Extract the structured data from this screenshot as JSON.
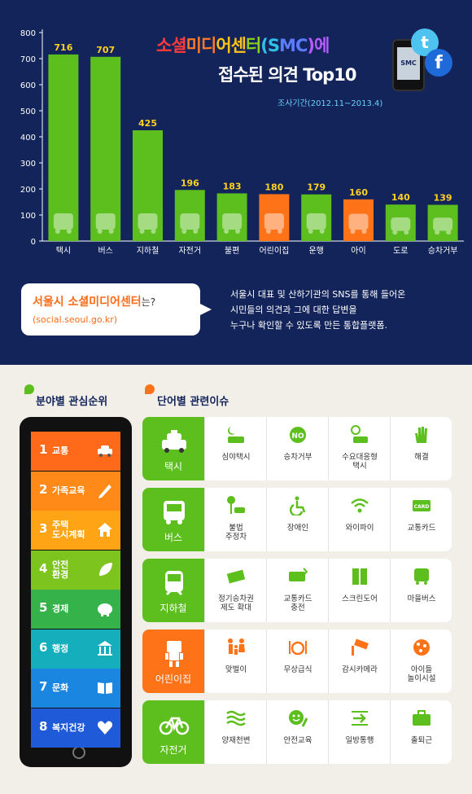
{
  "chart_data": {
    "type": "bar",
    "title": "소셜미디어센터(SMC)에 접수된 의견 Top10",
    "title_line1": "소셜미디어센터(SMC)에",
    "title_line2": "접수된 의견 Top10",
    "subtitle": "조사기간(2012.11~2013.4)",
    "categories": [
      "택시",
      "버스",
      "지하철",
      "자전거",
      "불편",
      "어린이집",
      "운행",
      "아이",
      "도로",
      "승차거부"
    ],
    "values": [
      716,
      707,
      425,
      196,
      183,
      180,
      179,
      160,
      140,
      139
    ],
    "bar_colors": [
      "#5cbf1e",
      "#5cbf1e",
      "#5cbf1e",
      "#5cbf1e",
      "#5cbf1e",
      "#ff7318",
      "#5cbf1e",
      "#ff7318",
      "#5cbf1e",
      "#5cbf1e"
    ],
    "y_ticks": [
      0,
      100,
      200,
      300,
      400,
      500,
      600,
      700,
      800
    ],
    "ylim": [
      0,
      800
    ],
    "grid": false
  },
  "smc_logo": {
    "phone_label": "SMC",
    "twitter_glyph": "t",
    "facebook_glyph": "f"
  },
  "info": {
    "bubble_title": "서울시 소셜미디어센터",
    "bubble_suffix": "는?",
    "url": "(social.seoul.go.kr)",
    "desc": [
      "서울시 대표 및 산하기관의 SNS를 통해 들어온",
      "시민들의 의견과 그에 대한 답변을",
      "누구나 확인할 수 있도록 만든 통합플랫폼."
    ]
  },
  "section_left": {
    "title": "분야별 관심순위",
    "dot_color": "#5cbf1e"
  },
  "section_right": {
    "title": "단어별 관련이슈",
    "dot_color": "#ff7318"
  },
  "ranks": [
    {
      "num": "1",
      "label": "교통",
      "color": "#ff6a1a",
      "icon": "car-icon"
    },
    {
      "num": "2",
      "label": "가족교육",
      "color": "#ff8a18",
      "icon": "pencil-icon"
    },
    {
      "num": "3",
      "label": "주택\n도시계획",
      "color": "#ffa515",
      "icon": "house-icon"
    },
    {
      "num": "4",
      "label": "안전\n환경",
      "color": "#7dc41e",
      "icon": "leaf-icon"
    },
    {
      "num": "5",
      "label": "경제",
      "color": "#35b34a",
      "icon": "piggy-bank-icon"
    },
    {
      "num": "6",
      "label": "행정",
      "color": "#15aebc",
      "icon": "government-building-icon"
    },
    {
      "num": "7",
      "label": "문화",
      "color": "#1a86e0",
      "icon": "book-icon"
    },
    {
      "num": "8",
      "label": "복지건강",
      "color": "#1f5ad8",
      "icon": "heart-icon"
    }
  ],
  "issues": [
    {
      "key": "택시",
      "key_color": "#5cbf1e",
      "items": [
        "심야택시",
        "승차거부",
        "수요대응형\n택시",
        "해결"
      ]
    },
    {
      "key": "버스",
      "key_color": "#5cbf1e",
      "items": [
        "불법\n주정차",
        "장애인",
        "와이파이",
        "교통카드"
      ]
    },
    {
      "key": "지하철",
      "key_color": "#5cbf1e",
      "items": [
        "정기승차권\n제도 확대",
        "교통카드\n충전",
        "스크린도어",
        "마을버스"
      ]
    },
    {
      "key": "어린이집",
      "key_color": "#ff7318",
      "items": [
        "맞벌이",
        "무상급식",
        "감시카메라",
        "아이들\n놀이시설"
      ]
    },
    {
      "key": "자전거",
      "key_color": "#5cbf1e",
      "items": [
        "양재천변",
        "안전교육",
        "일방통행",
        "출퇴근"
      ]
    }
  ]
}
